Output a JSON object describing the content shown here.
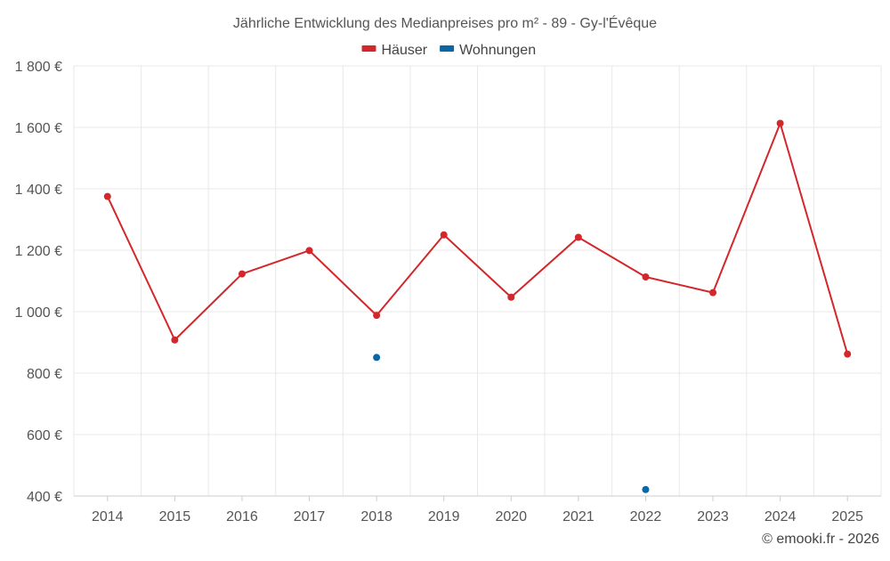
{
  "chart_data": {
    "type": "line",
    "title": "Jährliche Entwicklung des Medianpreises pro m² - 89 - Gy-l'Évêque",
    "xlabel": "",
    "ylabel": "",
    "categories": [
      "2014",
      "2015",
      "2016",
      "2017",
      "2018",
      "2019",
      "2020",
      "2021",
      "2022",
      "2023",
      "2024",
      "2025"
    ],
    "ylim": [
      400,
      1800
    ],
    "yticks": [
      400,
      600,
      800,
      1000,
      1200,
      1400,
      1600,
      1800
    ],
    "ytick_labels": [
      "400 €",
      "600 €",
      "800 €",
      "1 000 €",
      "1 200 €",
      "1 400 €",
      "1 600 €",
      "1 800 €"
    ],
    "grid": true,
    "legend_position": "top-center",
    "series": [
      {
        "name": "Häuser",
        "color": "#d3272b",
        "values": [
          1375,
          908,
          1123,
          1199,
          988,
          1250,
          1047,
          1242,
          1113,
          1062,
          1613,
          862
        ],
        "connect": true
      },
      {
        "name": "Wohnungen",
        "color": "#0b66a5",
        "values": [
          null,
          null,
          null,
          null,
          851,
          null,
          null,
          null,
          421,
          null,
          null,
          null
        ],
        "connect": false
      }
    ]
  },
  "footer": {
    "copyright": "© emooki.fr - 2026"
  }
}
